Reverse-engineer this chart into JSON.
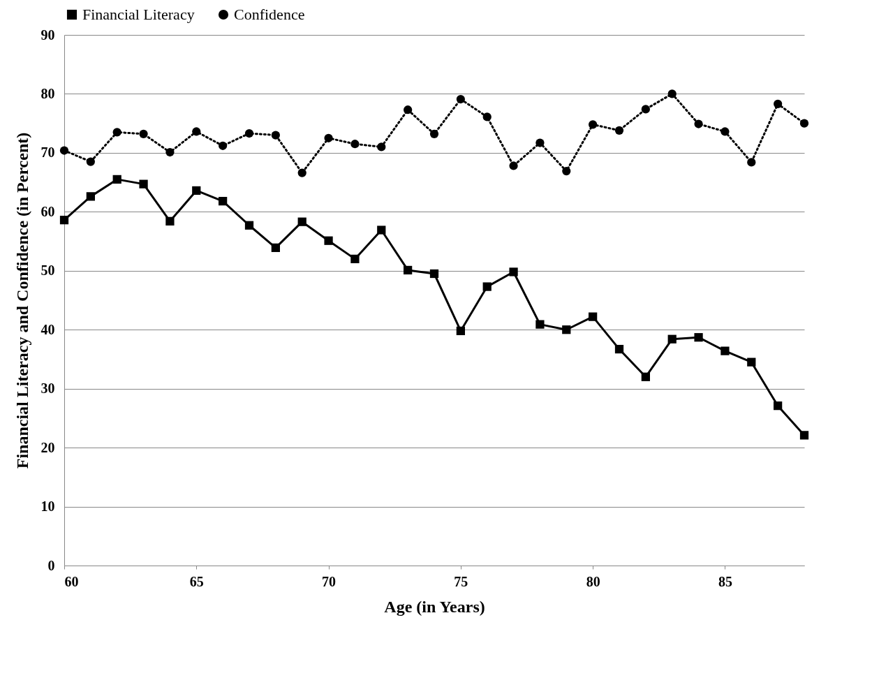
{
  "chart_data": {
    "type": "line",
    "xlabel": "Age (in Years)",
    "ylabel": "Financial Literacy and Confidence (in Percent)",
    "x": [
      60,
      61,
      62,
      63,
      64,
      65,
      66,
      67,
      68,
      69,
      70,
      71,
      72,
      73,
      74,
      75,
      76,
      77,
      78,
      79,
      80,
      81,
      82,
      83,
      84,
      85,
      86,
      87,
      88
    ],
    "series": [
      {
        "name": "Financial Literacy",
        "color": "#000000",
        "marker": "square",
        "line_style": "solid",
        "values": [
          58.6,
          62.6,
          65.5,
          64.7,
          58.4,
          63.6,
          61.8,
          57.7,
          53.9,
          58.3,
          55.1,
          52.0,
          56.9,
          50.1,
          49.5,
          39.8,
          47.3,
          49.8,
          40.9,
          40.0,
          42.2,
          36.7,
          32.0,
          38.4,
          38.7,
          36.4,
          34.5,
          27.1,
          22.1
        ]
      },
      {
        "name": "Confidence",
        "color": "#000000",
        "marker": "circle",
        "line_style": "dotted",
        "values": [
          70.4,
          68.5,
          73.5,
          73.2,
          70.1,
          73.6,
          71.2,
          73.3,
          73.0,
          66.6,
          72.5,
          71.5,
          71.0,
          77.3,
          73.2,
          79.1,
          76.1,
          67.8,
          71.7,
          66.9,
          74.8,
          73.8,
          77.4,
          80.0,
          74.9,
          73.6,
          68.4,
          78.3,
          75.0
        ]
      }
    ],
    "xlim": [
      60,
      88
    ],
    "xticks": [
      60,
      65,
      70,
      75,
      80,
      85
    ],
    "ylim": [
      0,
      90
    ],
    "yticks": [
      0,
      10,
      20,
      30,
      40,
      50,
      60,
      70,
      80,
      90
    ],
    "grid": "y",
    "legend": "top"
  }
}
